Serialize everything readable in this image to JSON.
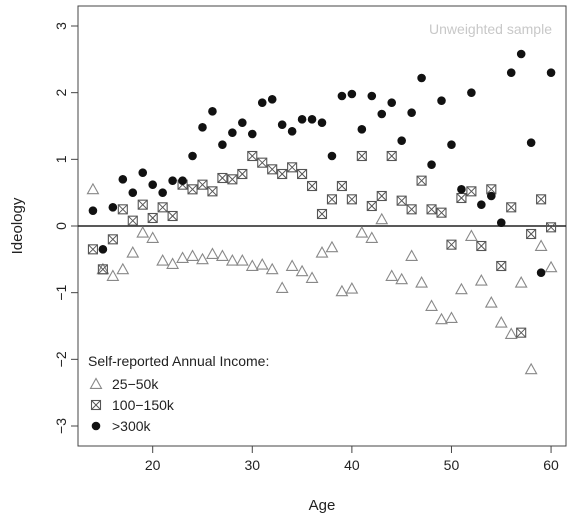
{
  "chart_data": {
    "type": "scatter",
    "title": "",
    "xlabel": "Age",
    "ylabel": "Ideology",
    "xlim": [
      12.5,
      61.5
    ],
    "ylim": [
      -3.3,
      3.3
    ],
    "xticks": [
      20,
      30,
      40,
      50,
      60
    ],
    "yticks": [
      -3,
      -2,
      -1,
      0,
      1,
      2,
      3
    ],
    "grid": false,
    "reference_line_y": 0,
    "annotation": "Unweighted sample",
    "legend": {
      "title": "Self-reported Annual Income:",
      "position": "bottom-left"
    },
    "series": [
      {
        "name": "25−50k",
        "marker": "open-triangle",
        "x": [
          14,
          15,
          16,
          17,
          18,
          19,
          20,
          21,
          22,
          23,
          24,
          25,
          26,
          27,
          28,
          29,
          30,
          31,
          32,
          33,
          34,
          35,
          36,
          37,
          38,
          39,
          40,
          41,
          42,
          43,
          44,
          45,
          46,
          47,
          48,
          49,
          50,
          51,
          52,
          53,
          54,
          55,
          56,
          57,
          58,
          59,
          60
        ],
        "y": [
          0.55,
          -0.65,
          -0.75,
          -0.65,
          -0.4,
          -0.1,
          -0.18,
          -0.52,
          -0.57,
          -0.48,
          -0.45,
          -0.5,
          -0.42,
          -0.45,
          -0.52,
          -0.52,
          -0.6,
          -0.58,
          -0.65,
          -0.93,
          -0.6,
          -0.68,
          -0.78,
          -0.4,
          -0.32,
          -0.98,
          -0.94,
          -0.1,
          -0.18,
          0.1,
          -0.75,
          -0.8,
          -0.45,
          -0.85,
          -1.2,
          -1.4,
          -1.38,
          -0.95,
          -0.15,
          -0.82,
          -1.15,
          -1.45,
          -1.62,
          -0.85,
          -2.15,
          -0.3,
          -0.62
        ]
      },
      {
        "name": "100−150k",
        "marker": "boxed-x",
        "x": [
          14,
          15,
          16,
          17,
          18,
          19,
          20,
          21,
          22,
          23,
          24,
          25,
          26,
          27,
          28,
          29,
          30,
          31,
          32,
          33,
          34,
          35,
          36,
          37,
          38,
          39,
          40,
          41,
          42,
          43,
          44,
          45,
          46,
          47,
          48,
          49,
          50,
          51,
          52,
          53,
          54,
          55,
          56,
          57,
          58,
          59,
          60
        ],
        "y": [
          -0.35,
          -0.65,
          -0.2,
          0.25,
          0.08,
          0.32,
          0.12,
          0.28,
          0.15,
          0.62,
          0.55,
          0.62,
          0.52,
          0.72,
          0.7,
          0.78,
          1.05,
          0.95,
          0.85,
          0.78,
          0.88,
          0.78,
          0.6,
          0.18,
          0.4,
          0.6,
          0.4,
          1.05,
          0.3,
          0.45,
          1.05,
          0.38,
          0.25,
          0.68,
          0.25,
          0.2,
          -0.28,
          0.42,
          0.52,
          -0.3,
          0.55,
          -0.6,
          0.28,
          -1.6,
          -0.12,
          0.4,
          -0.02
        ]
      },
      {
        "name": ">300k",
        "marker": "filled-circle",
        "x": [
          14,
          15,
          16,
          17,
          18,
          19,
          20,
          21,
          22,
          23,
          24,
          25,
          26,
          27,
          28,
          29,
          30,
          31,
          32,
          33,
          34,
          35,
          36,
          37,
          38,
          39,
          40,
          41,
          42,
          43,
          44,
          45,
          46,
          47,
          48,
          49,
          50,
          51,
          52,
          53,
          54,
          55,
          56,
          57,
          58,
          59,
          60
        ],
        "y": [
          0.23,
          -0.35,
          0.28,
          0.7,
          0.5,
          0.8,
          0.62,
          0.5,
          0.68,
          0.68,
          1.05,
          1.48,
          1.72,
          1.22,
          1.4,
          1.55,
          1.38,
          1.85,
          1.9,
          1.52,
          1.42,
          1.6,
          1.6,
          1.55,
          1.05,
          1.95,
          1.98,
          1.45,
          1.95,
          1.68,
          1.85,
          1.28,
          1.7,
          2.22,
          0.92,
          1.88,
          1.22,
          0.55,
          2.0,
          0.32,
          0.45,
          0.05,
          2.3,
          2.58,
          1.25,
          -0.7,
          2.3
        ]
      }
    ]
  }
}
